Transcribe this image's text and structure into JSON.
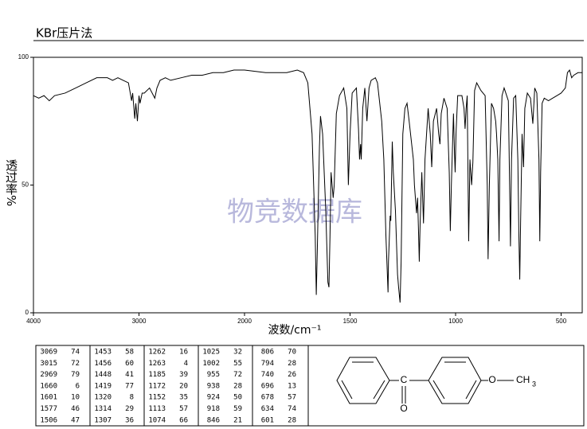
{
  "chart_data": {
    "type": "line",
    "title": "KBr压片法",
    "x_label": "波数/cm⁻¹",
    "y_label": "透过率%",
    "watermark": "物竞数据库",
    "color": "#000000",
    "xlim": [
      4000,
      400
    ],
    "xticks": [
      4000,
      3000,
      2000,
      1500,
      1000,
      500
    ],
    "ylim": [
      0,
      100
    ],
    "yticks": [
      0,
      50,
      100
    ],
    "x": [
      4000,
      3950,
      3900,
      3850,
      3800,
      3700,
      3600,
      3500,
      3400,
      3300,
      3250,
      3200,
      3150,
      3100,
      3070,
      3060,
      3040,
      3030,
      3015,
      3000,
      2990,
      2970,
      2950,
      2900,
      2850,
      2830,
      2800,
      2750,
      2700,
      2600,
      2500,
      2400,
      2300,
      2200,
      2100,
      2000,
      1900,
      1800,
      1750,
      1720,
      1700,
      1680,
      1665,
      1660,
      1655,
      1645,
      1640,
      1630,
      1615,
      1605,
      1600,
      1595,
      1590,
      1580,
      1575,
      1565,
      1550,
      1530,
      1515,
      1508,
      1500,
      1490,
      1470,
      1460,
      1455,
      1450,
      1447,
      1440,
      1430,
      1420,
      1410,
      1400,
      1380,
      1370,
      1350,
      1340,
      1330,
      1320,
      1318,
      1314,
      1310,
      1307,
      1300,
      1295,
      1285,
      1275,
      1270,
      1263,
      1258,
      1250,
      1240,
      1230,
      1220,
      1200,
      1195,
      1185,
      1180,
      1175,
      1172,
      1168,
      1160,
      1152,
      1145,
      1130,
      1120,
      1113,
      1105,
      1090,
      1080,
      1074,
      1068,
      1055,
      1040,
      1030,
      1025,
      1020,
      1010,
      1005,
      1002,
      998,
      990,
      970,
      960,
      955,
      950,
      945,
      938,
      932,
      924,
      918,
      910,
      900,
      880,
      860,
      850,
      846,
      840,
      830,
      820,
      810,
      806,
      800,
      794,
      790,
      780,
      770,
      750,
      744,
      740,
      735,
      725,
      715,
      705,
      700,
      696,
      692,
      685,
      678,
      672,
      660,
      645,
      634,
      625,
      615,
      605,
      601,
      597,
      590,
      580,
      560,
      540,
      520,
      500,
      480,
      470,
      460,
      450,
      440,
      420,
      400
    ],
    "values": [
      85,
      84,
      85,
      83,
      85,
      86,
      88,
      90,
      92,
      92,
      91,
      92,
      91,
      90,
      83,
      86,
      76,
      82,
      75,
      85,
      82,
      86,
      86,
      88,
      84,
      88,
      91,
      92,
      91,
      92,
      93,
      93,
      94,
      94,
      95,
      95,
      94,
      94,
      95,
      94,
      90,
      70,
      30,
      7,
      25,
      65,
      77,
      70,
      40,
      12,
      10,
      30,
      55,
      45,
      50,
      78,
      85,
      88,
      80,
      50,
      70,
      86,
      88,
      72,
      60,
      66,
      60,
      80,
      88,
      75,
      88,
      91,
      92,
      90,
      75,
      60,
      30,
      8,
      20,
      29,
      38,
      36,
      67,
      55,
      40,
      15,
      10,
      4,
      20,
      70,
      80,
      82,
      75,
      60,
      50,
      39,
      45,
      30,
      20,
      35,
      55,
      35,
      60,
      80,
      70,
      57,
      75,
      80,
      70,
      66,
      78,
      84,
      80,
      55,
      32,
      50,
      78,
      62,
      55,
      70,
      85,
      85,
      80,
      72,
      80,
      85,
      28,
      60,
      50,
      59,
      87,
      90,
      87,
      85,
      50,
      21,
      50,
      82,
      80,
      75,
      70,
      60,
      28,
      60,
      85,
      88,
      83,
      50,
      26,
      60,
      84,
      85,
      60,
      30,
      13,
      35,
      70,
      57,
      80,
      86,
      84,
      74,
      88,
      86,
      60,
      28,
      55,
      82,
      84,
      83,
      84,
      85,
      86,
      88,
      94,
      95,
      92,
      93,
      94,
      94
    ],
    "peaks": [
      [
        [
          3069,
          74
        ],
        [
          3015,
          72
        ],
        [
          2969,
          79
        ],
        [
          1660,
          6
        ],
        [
          1601,
          10
        ],
        [
          1577,
          46
        ],
        [
          1506,
          47
        ]
      ],
      [
        [
          1453,
          58
        ],
        [
          1456,
          60
        ],
        [
          1448,
          41
        ],
        [
          1419,
          77
        ],
        [
          1320,
          8
        ],
        [
          1314,
          29
        ],
        [
          1307,
          36
        ]
      ],
      [
        [
          1262,
          16
        ],
        [
          1263,
          4
        ],
        [
          1185,
          39
        ],
        [
          1172,
          20
        ],
        [
          1152,
          35
        ],
        [
          1113,
          57
        ],
        [
          1074,
          66
        ]
      ],
      [
        [
          1025,
          32
        ],
        [
          1002,
          55
        ],
        [
          955,
          72
        ],
        [
          938,
          28
        ],
        [
          924,
          50
        ],
        [
          918,
          59
        ],
        [
          846,
          21
        ]
      ],
      [
        [
          806,
          70
        ],
        [
          794,
          28
        ],
        [
          740,
          26
        ],
        [
          696,
          13
        ],
        [
          678,
          57
        ],
        [
          634,
          74
        ],
        [
          601,
          28
        ]
      ]
    ],
    "structure": {
      "carbon": "C",
      "carbonyl_oxygen": "O",
      "ether_oxygen": "O",
      "methyl": [
        "CH",
        "3"
      ]
    }
  }
}
